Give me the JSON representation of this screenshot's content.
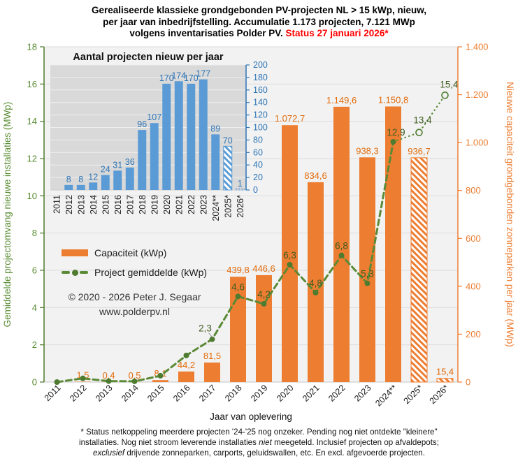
{
  "title": {
    "line1": "Gerealiseerde klassieke grondgebonden PV-projecten NL > 15 kWp, nieuw,",
    "line2": "per jaar van inbedrijfstelling. Accumulatie 1.173 projecten, 7.121 MWp",
    "line3_black": "volgens inventarisaties Polder PV. ",
    "line3_red": "Status 27 januari 2026*"
  },
  "legend": [
    {
      "label": "Capaciteit (kWp)",
      "type": "bar",
      "color": "#ED7D31"
    },
    {
      "label": "Project gemiddelde (kWp)",
      "type": "line",
      "color": "#5a8a35"
    }
  ],
  "copyright": {
    "line1": "© 2020 - 2026 Peter J. Segaar",
    "line2": "www.polderpv.nl"
  },
  "footnote": {
    "lines": [
      [
        {
          "t": "* Status netkoppeling meerdere projecten '24-'25 nog onzeker. Pending nog niet ontdekte \"kleinere\""
        }
      ],
      [
        {
          "t": "installaties. Nog niet stroom leverende installaties "
        },
        {
          "t": "niet",
          "i": true
        },
        {
          "t": " meegeteld. Inclusief projecten op afvaldepots;"
        }
      ],
      [
        {
          "t": "exclusief",
          "i": true
        },
        {
          "t": " drijvende zonneparken, carports, geluidswallen, etc. En excl. afgevoerde projecten."
        }
      ]
    ]
  },
  "colors": {
    "bar_orange": "#ED7D31",
    "bar_label_orange": "#E26B0A",
    "right_axis_orange": "#ED7D31",
    "left_axis_green": "#598C32",
    "axis_line_green": "#4d7a28",
    "line_green": "#5a8a35",
    "marker_green": "#4e7b2f",
    "line_label_green": "#3f5c22",
    "inset_blue": "#5B9BD5",
    "inset_text_blue": "#2E75B6",
    "status_red": "#ff0000",
    "plot_bg": "#f2f2f2",
    "inset_bg": "#d9d9d9"
  },
  "chart_data": [
    {
      "id": "main",
      "type": "bar",
      "title": "Gerealiseerde klassieke grondgebonden PV-projecten NL > 15 kWp, nieuw, per jaar van inbedrijfstelling. Accumulatie 1.173 projecten, 7.121 MWp volgens inventarisaties Polder PV. Status 27 januari 2026*",
      "xlabel": "Jaar van oplevering",
      "categories": [
        "2011",
        "2012",
        "2013",
        "2014",
        "2015",
        "2016",
        "2017",
        "2018",
        "2019",
        "2020",
        "2021",
        "2022",
        "2023",
        "2024**",
        "2025*",
        "2026*"
      ],
      "left_axis": {
        "label": "Gemiddelde projectomvang nieuwe installaties (MWp)",
        "min": 0,
        "max": 18,
        "step": 2,
        "tick_labels": [
          "0",
          "2",
          "4",
          "6",
          "8",
          "10",
          "12",
          "14",
          "16",
          "18"
        ]
      },
      "right_axis": {
        "label": "Nieuwe capaciteit grondgebonden zonneparken per jaar (MWp)",
        "min": 0,
        "max": 1400,
        "step": 200,
        "tick_labels": [
          "0",
          "200",
          "400",
          "600",
          "800",
          "1.000",
          "1.200",
          "1.400"
        ]
      },
      "grid": true,
      "legend_position": "inside-left",
      "series": [
        {
          "name": "Capaciteit (kWp)",
          "type": "bar",
          "axis": "right",
          "color": "#ED7D31",
          "values": [
            0,
            1.5,
            0.4,
            0.5,
            8.1,
            44.2,
            81.5,
            439.8,
            446.6,
            1072.7,
            834.6,
            1149.6,
            938.3,
            1150.8,
            936.7,
            15.4
          ],
          "labels": [
            "",
            "1,5",
            "0,4",
            "0,5",
            "8,1",
            "44,2",
            "81,5",
            "439,8",
            "446,6",
            "1.072,7",
            "834,6",
            "1.149,6",
            "938,3",
            "1.150,8",
            "936,7",
            "15,4"
          ],
          "hatched_indices": [
            14,
            15
          ]
        },
        {
          "name": "Project gemiddelde (kWp)",
          "type": "line",
          "axis": "left",
          "color": "#5a8a35",
          "values": [
            0,
            0.2,
            0.05,
            0.04,
            0.34,
            1.43,
            2.3,
            4.6,
            4.2,
            6.3,
            4.8,
            6.8,
            5.3,
            12.9,
            13.4,
            15.4
          ],
          "labels": [
            "",
            "",
            "",
            "",
            "",
            "",
            "2,3",
            "4,6",
            "4,2",
            "6,3",
            "4,8",
            "6,8",
            "5,3",
            "12,9",
            "13,4",
            "15,4"
          ],
          "projected_indices": [
            14,
            15
          ]
        }
      ]
    },
    {
      "id": "inset",
      "type": "bar",
      "title": "Aantal projecten nieuw per jaar",
      "categories": [
        "2011",
        "2012",
        "2013",
        "2014",
        "2015",
        "2016",
        "2017",
        "2018",
        "2019",
        "2020",
        "2021",
        "2022",
        "2023",
        "2024**",
        "2025*",
        "2026*"
      ],
      "values": [
        0,
        8,
        8,
        12,
        24,
        31,
        36,
        96,
        107,
        170,
        174,
        170,
        177,
        89,
        70,
        1
      ],
      "labels": [
        "",
        "8",
        "8",
        "12",
        "24",
        "31",
        "36",
        "96",
        "107",
        "170",
        "174",
        "170",
        "177",
        "89",
        "70",
        "1"
      ],
      "ylim": [
        0,
        200
      ],
      "step": 20,
      "tick_labels": [
        "0",
        "20",
        "40",
        "60",
        "80",
        "100",
        "120",
        "140",
        "160",
        "180",
        "200"
      ],
      "color": "#5B9BD5",
      "hatched_indices": [
        14
      ],
      "dotted_indices": [
        15
      ],
      "axis_side": "right"
    }
  ]
}
